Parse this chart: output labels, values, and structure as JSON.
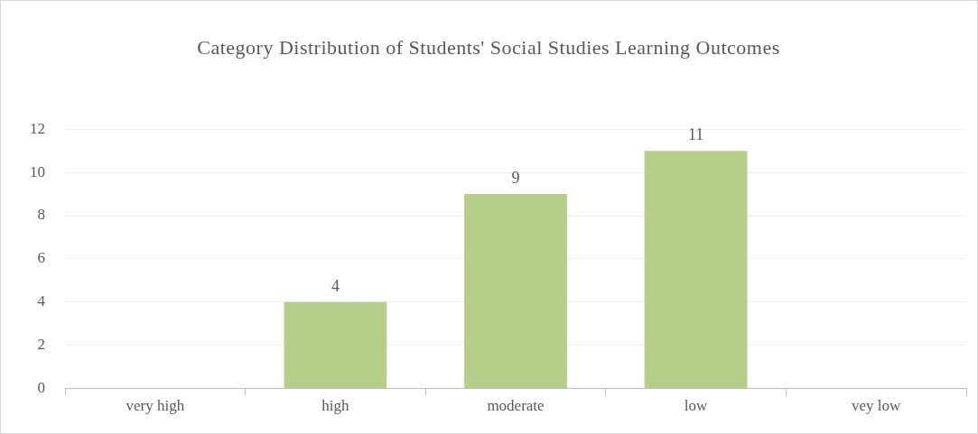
{
  "chart_data": {
    "type": "bar",
    "title": "Category Distribution of Students' Social Studies Learning Outcomes",
    "categories": [
      "very high",
      "high",
      "moderate",
      "low",
      "vey low"
    ],
    "values": [
      0,
      4,
      9,
      11,
      0
    ],
    "value_labels": [
      null,
      "4",
      "9",
      "11",
      null
    ],
    "color": "#b5cf8a",
    "ylim": [
      0,
      12
    ],
    "yticks": [
      0,
      2,
      4,
      6,
      8,
      10,
      12
    ],
    "grid": "y"
  }
}
